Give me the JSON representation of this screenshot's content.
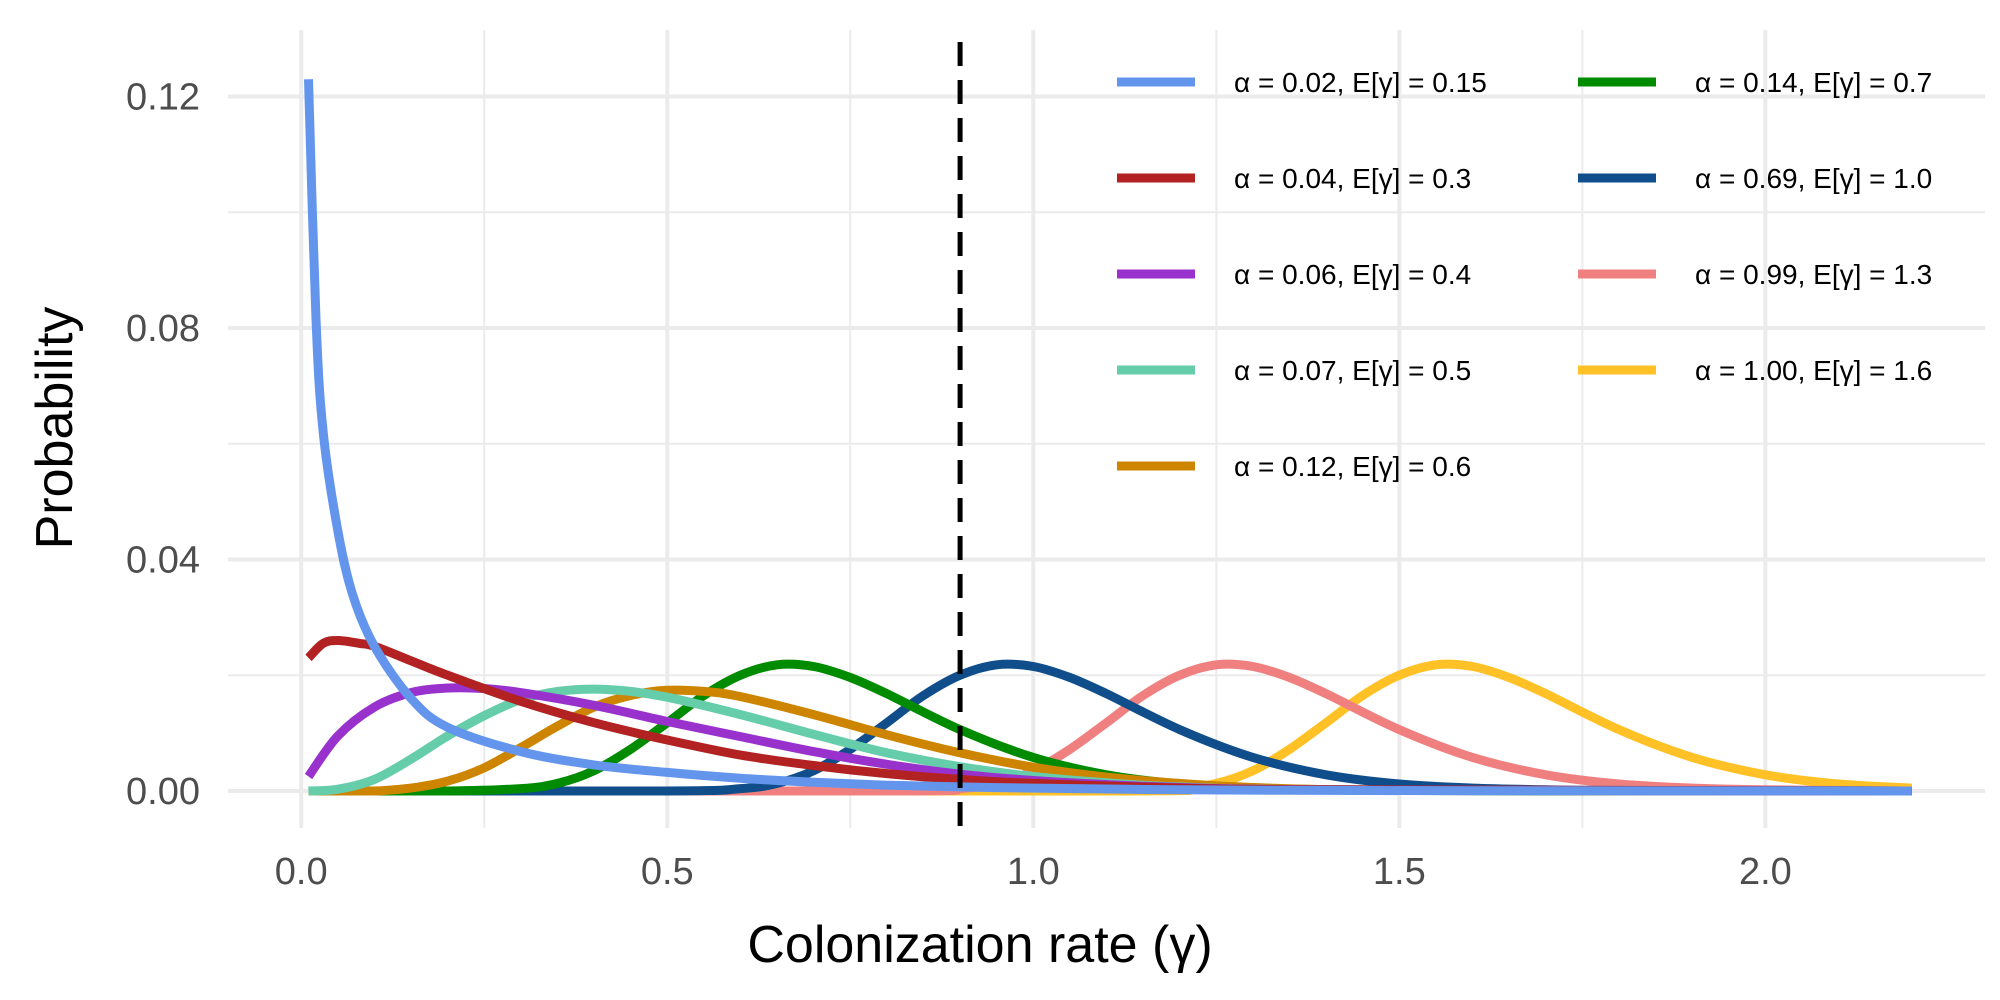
{
  "chart_data": {
    "type": "line",
    "title": "",
    "xlabel": "Colonization rate (γ)",
    "ylabel": "Probability",
    "xlim": [
      -0.1,
      2.3
    ],
    "ylim": [
      -0.0064,
      0.1315
    ],
    "x_ticks": [
      0.0,
      0.5,
      1.0,
      1.5,
      2.0
    ],
    "x_tick_labels": [
      "0.0",
      "0.5",
      "1.0",
      "1.5",
      "2.0"
    ],
    "y_ticks": [
      0.0,
      0.04,
      0.08,
      0.12
    ],
    "y_tick_labels": [
      "0.00",
      "0.04",
      "0.08",
      "0.12"
    ],
    "grid": true,
    "legend_position": "top-right",
    "reference_line": {
      "orientation": "vertical",
      "x": 0.9,
      "style": "dashed",
      "color": "#000000"
    },
    "series": [
      {
        "name": "α = 0.02, E[γ] = 0.15",
        "color": "#6495ED",
        "x": [
          0.01,
          0.02,
          0.03,
          0.05,
          0.07,
          0.1,
          0.15,
          0.2,
          0.3,
          0.4,
          0.5,
          0.6,
          0.7,
          0.8,
          0.9,
          1.0,
          1.2,
          1.4,
          1.6,
          2.2
        ],
        "y": [
          0.123,
          0.082,
          0.062,
          0.045,
          0.034,
          0.025,
          0.016,
          0.011,
          0.0068,
          0.0045,
          0.0032,
          0.0022,
          0.0015,
          0.001,
          0.0007,
          0.0005,
          0.0002,
          0.0001,
          5e-05,
          0.0
        ]
      },
      {
        "name": "α = 0.04, E[γ] = 0.3",
        "color": "#B22222",
        "x": [
          0.01,
          0.03,
          0.05,
          0.08,
          0.1,
          0.15,
          0.2,
          0.3,
          0.4,
          0.5,
          0.6,
          0.7,
          0.8,
          0.9,
          1.0,
          1.2,
          1.4,
          2.2
        ],
        "y": [
          0.023,
          0.0255,
          0.026,
          0.0255,
          0.025,
          0.0225,
          0.02,
          0.0155,
          0.0118,
          0.0088,
          0.0062,
          0.0044,
          0.003,
          0.002,
          0.0013,
          0.0005,
          0.0002,
          0.0
        ]
      },
      {
        "name": "α = 0.06, E[γ] = 0.4",
        "color": "#9932CC",
        "x": [
          0.01,
          0.05,
          0.1,
          0.15,
          0.2,
          0.25,
          0.3,
          0.4,
          0.5,
          0.6,
          0.7,
          0.8,
          0.9,
          1.0,
          1.1,
          1.2,
          1.4,
          2.2
        ],
        "y": [
          0.0025,
          0.0095,
          0.0145,
          0.017,
          0.0178,
          0.0177,
          0.017,
          0.0148,
          0.012,
          0.0094,
          0.0068,
          0.0046,
          0.0029,
          0.0018,
          0.0011,
          0.0006,
          0.0002,
          0.0
        ]
      },
      {
        "name": "α = 0.07, E[γ] = 0.5",
        "color": "#66CDAA",
        "x": [
          0.01,
          0.05,
          0.1,
          0.15,
          0.2,
          0.25,
          0.3,
          0.35,
          0.4,
          0.45,
          0.5,
          0.6,
          0.7,
          0.8,
          0.9,
          1.0,
          1.1,
          1.2,
          1.4,
          2.2
        ],
        "y": [
          0.0,
          0.0003,
          0.002,
          0.0055,
          0.0095,
          0.013,
          0.0158,
          0.0172,
          0.0176,
          0.0172,
          0.0162,
          0.0132,
          0.0098,
          0.0066,
          0.0042,
          0.0025,
          0.0014,
          0.0007,
          0.0002,
          0.0
        ]
      },
      {
        "name": "α = 0.12, E[γ] = 0.6",
        "color": "#CD8500",
        "x": [
          0.01,
          0.1,
          0.15,
          0.2,
          0.25,
          0.3,
          0.35,
          0.4,
          0.45,
          0.5,
          0.55,
          0.6,
          0.7,
          0.8,
          0.9,
          1.0,
          1.1,
          1.2,
          1.3,
          1.5,
          2.2
        ],
        "y": [
          0.0,
          0.0,
          0.0005,
          0.0017,
          0.004,
          0.0075,
          0.0112,
          0.0145,
          0.0165,
          0.0174,
          0.0172,
          0.0163,
          0.0132,
          0.0097,
          0.0066,
          0.0041,
          0.0024,
          0.0013,
          0.0006,
          0.0001,
          0.0
        ]
      },
      {
        "name": "α = 0.14, E[γ] = 0.7",
        "color": "#008B00",
        "x": [
          0.01,
          0.2,
          0.3,
          0.35,
          0.4,
          0.45,
          0.5,
          0.55,
          0.6,
          0.65,
          0.7,
          0.75,
          0.8,
          0.9,
          1.0,
          1.1,
          1.2,
          1.3,
          1.4,
          1.5,
          1.7,
          2.2
        ],
        "y": [
          0.0,
          0.0,
          0.0004,
          0.0013,
          0.0035,
          0.0072,
          0.0118,
          0.0165,
          0.02,
          0.0218,
          0.0215,
          0.0196,
          0.0168,
          0.0106,
          0.0058,
          0.0028,
          0.0012,
          0.0005,
          0.0002,
          0.0001,
          0.0,
          0.0
        ]
      },
      {
        "name": "α = 0.69, E[γ] = 1.0",
        "color": "#104E8B",
        "x": [
          0.01,
          0.5,
          0.6,
          0.65,
          0.7,
          0.75,
          0.8,
          0.85,
          0.9,
          0.95,
          1.0,
          1.05,
          1.1,
          1.2,
          1.3,
          1.4,
          1.5,
          1.6,
          1.7,
          1.8,
          2.2
        ],
        "y": [
          0.0,
          0.0,
          0.0004,
          0.0013,
          0.0035,
          0.0072,
          0.0118,
          0.0165,
          0.02,
          0.0218,
          0.0215,
          0.0196,
          0.0168,
          0.0106,
          0.0058,
          0.0028,
          0.0012,
          0.0005,
          0.0002,
          0.0001,
          0.0
        ]
      },
      {
        "name": "α = 0.99, E[γ] = 1.3",
        "color": "#F08080",
        "x": [
          0.01,
          0.8,
          0.9,
          0.95,
          1.0,
          1.05,
          1.1,
          1.15,
          1.2,
          1.25,
          1.3,
          1.35,
          1.4,
          1.5,
          1.6,
          1.7,
          1.8,
          1.9,
          2.0,
          2.2
        ],
        "y": [
          0.0,
          0.0,
          0.0004,
          0.0013,
          0.0035,
          0.0072,
          0.0118,
          0.0165,
          0.02,
          0.0218,
          0.0215,
          0.0196,
          0.0168,
          0.0106,
          0.0058,
          0.0028,
          0.0012,
          0.0005,
          0.0002,
          0.0
        ]
      },
      {
        "name": "α = 1.00, E[γ] = 1.6",
        "color": "#FFC125",
        "x": [
          0.01,
          1.1,
          1.2,
          1.25,
          1.3,
          1.35,
          1.4,
          1.45,
          1.5,
          1.55,
          1.6,
          1.65,
          1.7,
          1.8,
          1.9,
          2.0,
          2.1,
          2.2
        ],
        "y": [
          0.0,
          0.0,
          0.0004,
          0.0013,
          0.0035,
          0.0072,
          0.0118,
          0.0165,
          0.02,
          0.0218,
          0.0215,
          0.0196,
          0.0168,
          0.0106,
          0.0058,
          0.0028,
          0.0012,
          0.0005
        ]
      }
    ]
  }
}
